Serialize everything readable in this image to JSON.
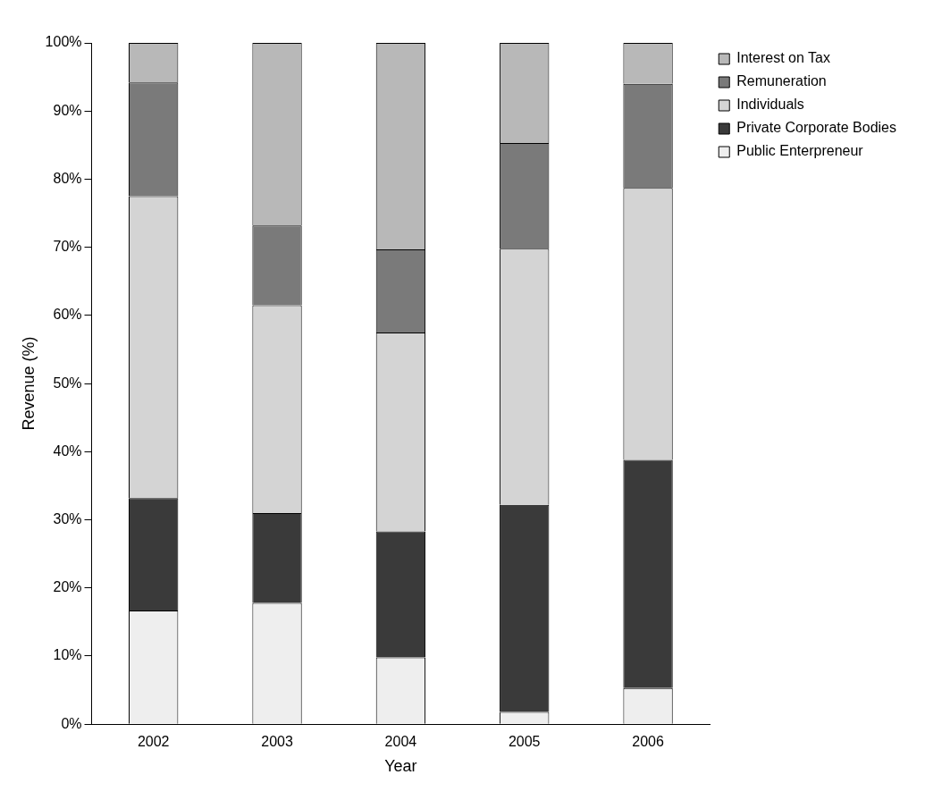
{
  "chart_data": {
    "type": "bar",
    "stacked": true,
    "xlabel": "Year",
    "ylabel": "Revenue (%)",
    "categories": [
      "2002",
      "2003",
      "2004",
      "2005",
      "2006"
    ],
    "series": [
      {
        "name": "Public Enterpreneur",
        "color": "#eeeeee",
        "values": [
          16.7,
          17.8,
          9.8,
          1.8,
          5.3
        ]
      },
      {
        "name": "Private Corporate Bodies",
        "color": "#3a3a3a",
        "values": [
          16.5,
          13.2,
          18.5,
          30.4,
          33.5
        ]
      },
      {
        "name": "Individuals",
        "color": "#d4d4d4",
        "values": [
          44.3,
          30.5,
          29.2,
          37.6,
          39.9
        ]
      },
      {
        "name": "Remuneration",
        "color": "#7a7a7a",
        "values": [
          16.7,
          11.7,
          12.2,
          15.5,
          15.3
        ]
      },
      {
        "name": "Interest on Tax",
        "color": "#b8b8b8",
        "values": [
          5.8,
          26.8,
          30.3,
          14.7,
          6.0
        ]
      }
    ],
    "ylim": [
      0,
      100
    ],
    "yticks": [
      {
        "value": 0,
        "label": "0%"
      },
      {
        "value": 10,
        "label": "10%"
      },
      {
        "value": 20,
        "label": "20%"
      },
      {
        "value": 30,
        "label": "30%"
      },
      {
        "value": 40,
        "label": "40%"
      },
      {
        "value": 50,
        "label": "50%"
      },
      {
        "value": 60,
        "label": "60%"
      },
      {
        "value": 70,
        "label": "70%"
      },
      {
        "value": 80,
        "label": "80%"
      },
      {
        "value": 90,
        "label": "90%"
      },
      {
        "value": 100,
        "label": "100%"
      }
    ],
    "grid": false,
    "legend": "top right"
  }
}
